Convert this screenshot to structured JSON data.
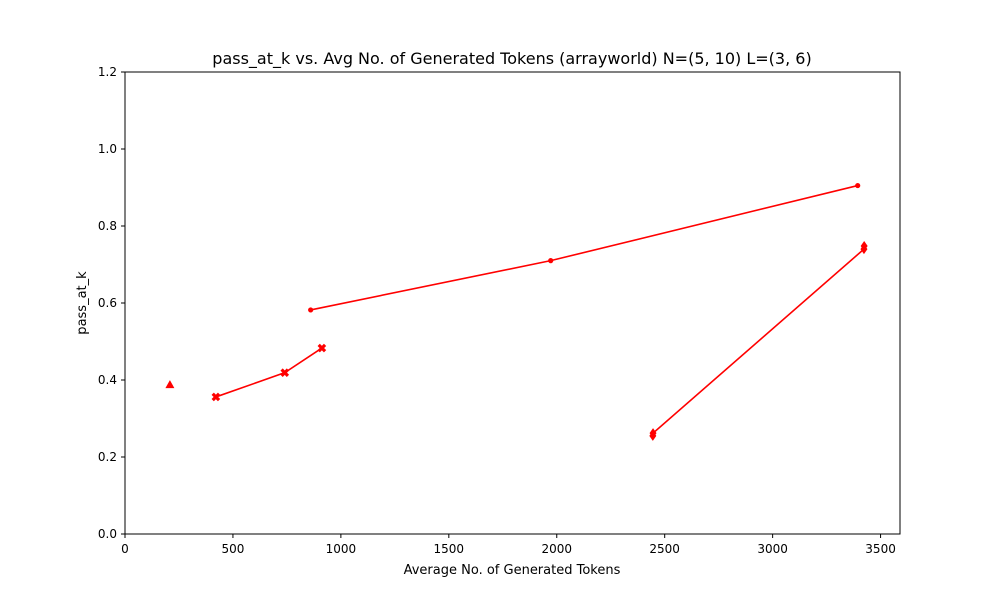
{
  "chart_data": {
    "type": "line",
    "title": "pass_at_k vs. Avg No. of Generated Tokens (arrayworld) N=(5, 10) L=(3, 6)",
    "xlabel": "Average No. of Generated Tokens",
    "ylabel": "pass_at_k",
    "xlim": [
      0,
      3590
    ],
    "ylim": [
      0,
      1.2
    ],
    "xticks": [
      0,
      500,
      1000,
      1500,
      2000,
      2500,
      3000,
      3500
    ],
    "xtick_labels": [
      "0",
      "500",
      "1000",
      "1500",
      "2000",
      "2500",
      "3000",
      "3500"
    ],
    "yticks": [
      0,
      0.2,
      0.4,
      0.6,
      0.8,
      1.0,
      1.2
    ],
    "ytick_labels": [
      "0.0",
      "0.2",
      "0.4",
      "0.6",
      "0.8",
      "1.0",
      "1.2"
    ],
    "grid": false,
    "series": [
      {
        "marker": "triangle",
        "color": "#ff0000",
        "x": [
          208
        ],
        "y": [
          0.388
        ]
      },
      {
        "marker": "x-filled",
        "color": "#ff0000",
        "x": [
          421,
          740,
          912
        ],
        "y": [
          0.356,
          0.419,
          0.483
        ]
      },
      {
        "marker": "dot",
        "color": "#ff0000",
        "x": [
          860,
          1972,
          3394
        ],
        "y": [
          0.582,
          0.71,
          0.905
        ]
      },
      {
        "marker": "diamond",
        "color": "#ff0000",
        "x": [
          2445,
          2446,
          3423,
          3424
        ],
        "y": [
          0.255,
          0.262,
          0.74,
          0.748
        ]
      }
    ]
  }
}
